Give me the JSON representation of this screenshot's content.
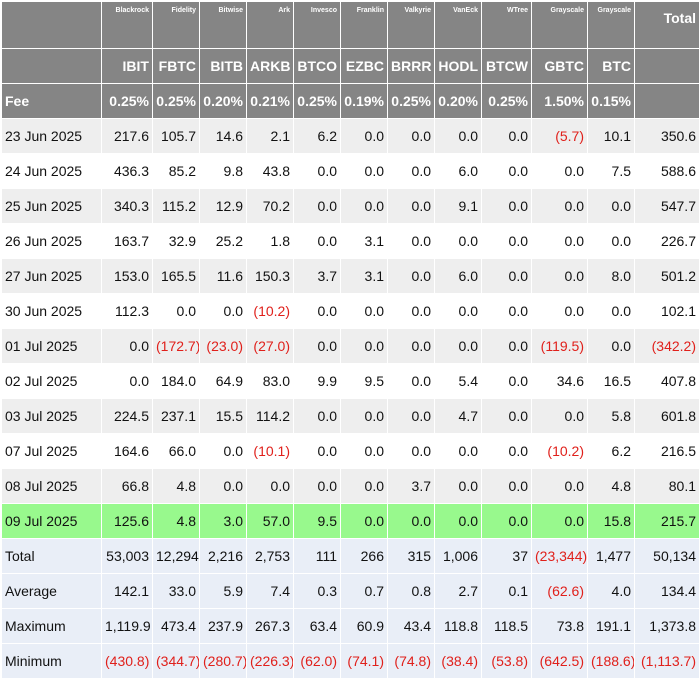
{
  "header": {
    "issuers": [
      "Blackrock",
      "Fidelity",
      "Bitwise",
      "Ark",
      "Invesco",
      "Franklin",
      "Valkyrie",
      "VanEck",
      "WTree",
      "Grayscale",
      "Grayscale"
    ],
    "total_label": "Total",
    "tickers": [
      "IBIT",
      "FBTC",
      "BITB",
      "ARKB",
      "BTCO",
      "EZBC",
      "BRRR",
      "HODL",
      "BTCW",
      "GBTC",
      "BTC"
    ]
  },
  "fees": {
    "label": "Fee",
    "values": [
      "0.25%",
      "0.25%",
      "0.20%",
      "0.21%",
      "0.25%",
      "0.19%",
      "0.25%",
      "0.20%",
      "0.25%",
      "1.50%",
      "0.15%"
    ]
  },
  "rows": [
    {
      "date": "23 Jun 2025",
      "values": [
        "217.6",
        "105.7",
        "14.6",
        "2.1",
        "6.2",
        "0.0",
        "0.0",
        "0.0",
        "0.0",
        "(5.7)",
        "10.1",
        "350.6"
      ]
    },
    {
      "date": "24 Jun 2025",
      "values": [
        "436.3",
        "85.2",
        "9.8",
        "43.8",
        "0.0",
        "0.0",
        "0.0",
        "6.0",
        "0.0",
        "0.0",
        "7.5",
        "588.6"
      ]
    },
    {
      "date": "25 Jun 2025",
      "values": [
        "340.3",
        "115.2",
        "12.9",
        "70.2",
        "0.0",
        "0.0",
        "0.0",
        "9.1",
        "0.0",
        "0.0",
        "0.0",
        "547.7"
      ]
    },
    {
      "date": "26 Jun 2025",
      "values": [
        "163.7",
        "32.9",
        "25.2",
        "1.8",
        "0.0",
        "3.1",
        "0.0",
        "0.0",
        "0.0",
        "0.0",
        "0.0",
        "226.7"
      ]
    },
    {
      "date": "27 Jun 2025",
      "values": [
        "153.0",
        "165.5",
        "11.6",
        "150.3",
        "3.7",
        "3.1",
        "0.0",
        "6.0",
        "0.0",
        "0.0",
        "8.0",
        "501.2"
      ]
    },
    {
      "date": "30 Jun 2025",
      "values": [
        "112.3",
        "0.0",
        "0.0",
        "(10.2)",
        "0.0",
        "0.0",
        "0.0",
        "0.0",
        "0.0",
        "0.0",
        "0.0",
        "102.1"
      ]
    },
    {
      "date": "01 Jul 2025",
      "values": [
        "0.0",
        "(172.7)",
        "(23.0)",
        "(27.0)",
        "0.0",
        "0.0",
        "0.0",
        "0.0",
        "0.0",
        "(119.5)",
        "0.0",
        "(342.2)"
      ]
    },
    {
      "date": "02 Jul 2025",
      "values": [
        "0.0",
        "184.0",
        "64.9",
        "83.0",
        "9.9",
        "9.5",
        "0.0",
        "5.4",
        "0.0",
        "34.6",
        "16.5",
        "407.8"
      ]
    },
    {
      "date": "03 Jul 2025",
      "values": [
        "224.5",
        "237.1",
        "15.5",
        "114.2",
        "0.0",
        "0.0",
        "0.0",
        "4.7",
        "0.0",
        "0.0",
        "5.8",
        "601.8"
      ]
    },
    {
      "date": "07 Jul 2025",
      "values": [
        "164.6",
        "66.0",
        "0.0",
        "(10.1)",
        "0.0",
        "0.0",
        "0.0",
        "0.0",
        "0.0",
        "(10.2)",
        "6.2",
        "216.5"
      ]
    },
    {
      "date": "08 Jul 2025",
      "values": [
        "66.8",
        "4.8",
        "0.0",
        "0.0",
        "0.0",
        "0.0",
        "3.7",
        "0.0",
        "0.0",
        "0.0",
        "4.8",
        "80.1"
      ]
    },
    {
      "date": "09 Jul 2025",
      "values": [
        "125.6",
        "4.8",
        "3.0",
        "57.0",
        "9.5",
        "0.0",
        "0.0",
        "0.0",
        "0.0",
        "0.0",
        "15.8",
        "215.7"
      ]
    }
  ],
  "stats": [
    {
      "label": "Total",
      "values": [
        "53,003",
        "12,294",
        "2,216",
        "2,753",
        "111",
        "266",
        "315",
        "1,006",
        "37",
        "(23,344)",
        "1,477",
        "50,134"
      ]
    },
    {
      "label": "Average",
      "values": [
        "142.1",
        "33.0",
        "5.9",
        "7.4",
        "0.3",
        "0.7",
        "0.8",
        "2.7",
        "0.1",
        "(62.6)",
        "4.0",
        "134.4"
      ]
    },
    {
      "label": "Maximum",
      "values": [
        "1,119.9",
        "473.4",
        "237.9",
        "267.3",
        "63.4",
        "60.9",
        "43.4",
        "118.8",
        "118.5",
        "73.8",
        "191.1",
        "1,373.8"
      ]
    },
    {
      "label": "Minimum",
      "values": [
        "(430.8)",
        "(344.7)",
        "(280.7)",
        "(226.3)",
        "(62.0)",
        "(74.1)",
        "(74.8)",
        "(38.4)",
        "(53.8)",
        "(642.5)",
        "(188.6)",
        "(1,113.7)"
      ]
    }
  ],
  "colors": {
    "header_bg": "#858585",
    "odd_row": "#eeeeee",
    "highlight_row": "#98f98d",
    "stats_bg": "#e9eef7",
    "negative": "#e0201b"
  }
}
